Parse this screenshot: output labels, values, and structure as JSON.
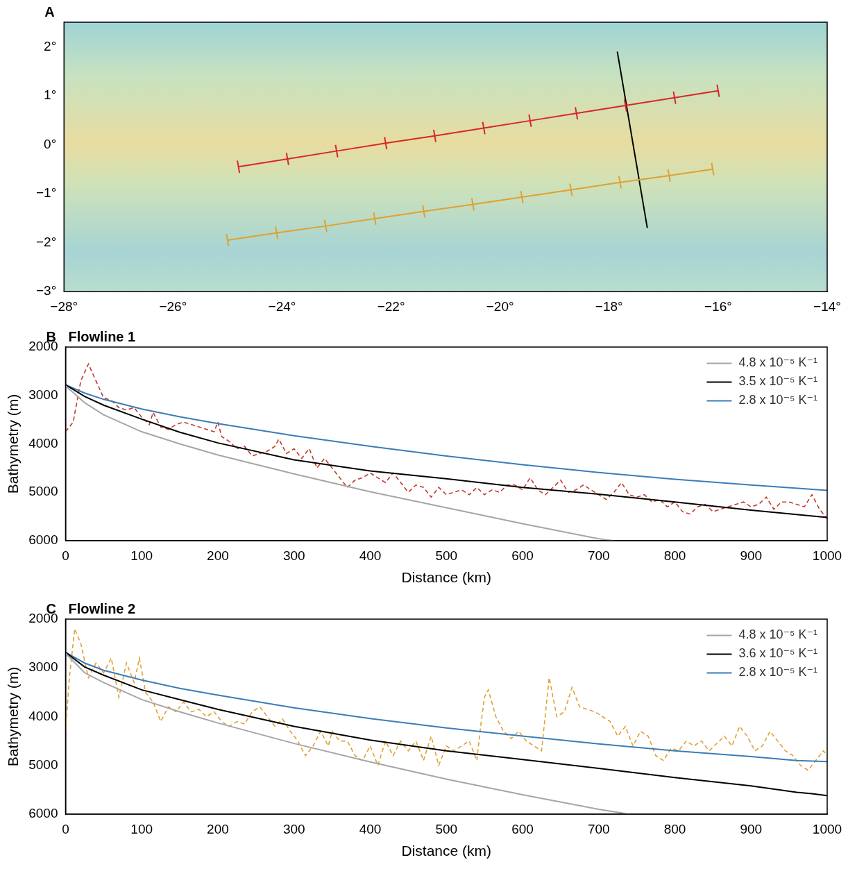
{
  "chart_data": [
    {
      "type": "scatter",
      "panel": "A",
      "xlim": [
        -28,
        -14
      ],
      "xticks": [
        {
          "value": -28,
          "label": "−28°"
        },
        {
          "value": -26,
          "label": "−26°"
        },
        {
          "value": -24,
          "label": "−24°"
        },
        {
          "value": -22,
          "label": "−22°"
        },
        {
          "value": -20,
          "label": "−20°"
        },
        {
          "value": -18,
          "label": "−18°"
        },
        {
          "value": -16,
          "label": "−16°"
        },
        {
          "value": -14,
          "label": "−14°"
        }
      ],
      "ylim": [
        -3,
        2.5
      ],
      "yticks": [
        {
          "value": -3,
          "label": "−3°"
        },
        {
          "value": -2,
          "label": "−2°"
        },
        {
          "value": -1,
          "label": "−1°"
        },
        {
          "value": 0,
          "label": "0°"
        },
        {
          "value": 1,
          "label": "1°"
        },
        {
          "value": 2,
          "label": "2°"
        }
      ],
      "grid": false,
      "series": [
        {
          "color": "#d7262b",
          "marker": "line",
          "line_style": "solid",
          "x": [
            -24.8,
            -23.9,
            -23.0,
            -22.1,
            -21.2,
            -20.3,
            -19.45,
            -18.6,
            -17.7,
            -16.8,
            -16.0
          ],
          "values": [
            -0.45,
            -0.29,
            -0.13,
            0.03,
            0.18,
            0.34,
            0.49,
            0.64,
            0.8,
            0.96,
            1.1
          ]
        },
        {
          "color": "#e0a030",
          "marker": "line",
          "line_style": "solid",
          "x": [
            -25.0,
            -24.1,
            -23.2,
            -22.3,
            -21.4,
            -20.5,
            -19.6,
            -18.7,
            -17.8,
            -16.9,
            -16.1
          ],
          "values": [
            -1.95,
            -1.8,
            -1.66,
            -1.51,
            -1.36,
            -1.22,
            -1.07,
            -0.92,
            -0.77,
            -0.63,
            -0.5
          ]
        },
        {
          "color": "#000000",
          "marker": "none",
          "line_style": "solid",
          "x": [
            -17.85,
            -17.3
          ],
          "values": [
            1.9,
            -1.7
          ]
        }
      ]
    },
    {
      "type": "line",
      "panel": "B",
      "title": "Flowline 1",
      "x_label": "Distance (km)",
      "y_label": "Bathymetry (m)",
      "xlim": [
        0,
        1000
      ],
      "xticks": [
        0,
        100,
        200,
        300,
        400,
        500,
        600,
        700,
        800,
        900,
        1000
      ],
      "ylim": [
        6000,
        2000
      ],
      "yticks": [
        2000,
        3000,
        4000,
        5000,
        6000
      ],
      "grid": false,
      "legend": "top-right",
      "series": [
        {
          "name": "4.8 x 10⁻⁵ K⁻¹",
          "color": "#a6a6a6",
          "line_style": "solid",
          "x": [
            0,
            25,
            50,
            100,
            150,
            200,
            300,
            400,
            500,
            600,
            700,
            720
          ],
          "values": [
            2800,
            3150,
            3400,
            3750,
            4000,
            4230,
            4620,
            4990,
            5320,
            5650,
            5960,
            6000
          ]
        },
        {
          "name": "3.5 x 10⁻⁵ K⁻¹",
          "color": "#000000",
          "line_style": "solid",
          "x": [
            0,
            25,
            50,
            100,
            150,
            200,
            300,
            400,
            500,
            600,
            700,
            800,
            900,
            1000
          ],
          "values": [
            2780,
            3020,
            3200,
            3490,
            3760,
            3980,
            4330,
            4560,
            4720,
            4900,
            5040,
            5200,
            5370,
            5520
          ]
        },
        {
          "name": "2.8 x 10⁻⁵ K⁻¹",
          "color": "#3a7db8",
          "line_style": "solid",
          "x": [
            0,
            25,
            50,
            100,
            150,
            200,
            300,
            400,
            500,
            600,
            700,
            800,
            900,
            1000
          ],
          "values": [
            2780,
            2950,
            3080,
            3280,
            3440,
            3580,
            3830,
            4050,
            4250,
            4430,
            4590,
            4730,
            4850,
            4960
          ]
        },
        {
          "color": "#c0392b",
          "line_style": "dashed",
          "x": [
            0,
            10,
            20,
            30,
            40,
            50,
            60,
            70,
            80,
            90,
            100,
            110,
            115,
            125,
            135,
            145,
            155,
            165,
            175,
            185,
            195,
            200,
            205,
            215,
            225,
            235,
            245,
            255,
            265,
            275,
            280,
            290,
            300,
            310,
            320,
            330,
            340,
            350,
            360,
            370,
            380,
            390,
            400,
            410,
            420,
            430,
            440,
            450,
            460,
            470,
            480,
            490,
            500,
            510,
            520,
            530,
            540,
            550,
            560,
            570,
            580,
            590,
            600,
            610,
            620,
            630,
            640,
            650,
            660,
            670,
            680,
            690,
            700,
            710,
            720,
            730,
            740,
            750,
            760,
            770,
            780,
            790,
            800,
            810,
            820,
            830,
            840,
            850,
            860,
            870,
            880,
            890,
            900,
            910,
            920,
            930,
            940,
            950,
            960,
            970,
            980,
            990,
            1000
          ],
          "values": [
            3750,
            3550,
            2700,
            2350,
            2700,
            3050,
            3100,
            3250,
            3300,
            3250,
            3450,
            3600,
            3350,
            3650,
            3700,
            3600,
            3550,
            3600,
            3650,
            3700,
            3750,
            3550,
            3850,
            3950,
            4100,
            4050,
            4250,
            4200,
            4150,
            4050,
            3900,
            4200,
            4100,
            4300,
            4100,
            4500,
            4300,
            4500,
            4700,
            4900,
            4750,
            4700,
            4600,
            4700,
            4800,
            4600,
            4800,
            5000,
            4850,
            4900,
            5100,
            4900,
            5050,
            5000,
            4950,
            5050,
            4900,
            5050,
            4950,
            5000,
            4850,
            4850,
            4950,
            4700,
            4950,
            5050,
            4900,
            4750,
            5000,
            4950,
            4850,
            4950,
            5050,
            5150,
            5000,
            4800,
            5050,
            5100,
            5050,
            5200,
            5150,
            5300,
            5200,
            5400,
            5450,
            5300,
            5250,
            5400,
            5350,
            5300,
            5250,
            5200,
            5300,
            5250,
            5100,
            5350,
            5200,
            5200,
            5250,
            5300,
            5050,
            5350,
            5550
          ]
        }
      ]
    },
    {
      "type": "line",
      "panel": "C",
      "title": "Flowline 2",
      "x_label": "Distance (km)",
      "y_label": "Bathymetry (m)",
      "xlim": [
        0,
        1000
      ],
      "xticks": [
        0,
        100,
        200,
        300,
        400,
        500,
        600,
        700,
        800,
        900,
        1000
      ],
      "ylim": [
        6000,
        2000
      ],
      "yticks": [
        2000,
        3000,
        4000,
        5000,
        6000
      ],
      "grid": false,
      "legend": "top-right",
      "series": [
        {
          "name": "4.8 x 10⁻⁵ K⁻¹",
          "color": "#a6a6a6",
          "line_style": "solid",
          "x": [
            0,
            25,
            50,
            100,
            150,
            200,
            300,
            400,
            500,
            600,
            700,
            740
          ],
          "values": [
            2700,
            3100,
            3300,
            3650,
            3900,
            4130,
            4550,
            4930,
            5280,
            5600,
            5900,
            6000
          ]
        },
        {
          "name": "3.6 x 10⁻⁵ K⁻¹",
          "color": "#000000",
          "line_style": "solid",
          "x": [
            0,
            25,
            50,
            100,
            150,
            200,
            300,
            400,
            500,
            600,
            700,
            800,
            900,
            960,
            980,
            1000
          ],
          "values": [
            2680,
            2980,
            3150,
            3450,
            3650,
            3850,
            4200,
            4480,
            4700,
            4880,
            5060,
            5250,
            5420,
            5550,
            5580,
            5620
          ]
        },
        {
          "name": "2.8 x 10⁻⁵ K⁻¹",
          "color": "#3a7db8",
          "line_style": "solid",
          "x": [
            0,
            25,
            50,
            100,
            150,
            200,
            300,
            400,
            500,
            600,
            700,
            800,
            900,
            960,
            1000
          ],
          "values": [
            2680,
            2900,
            3050,
            3250,
            3420,
            3560,
            3820,
            4040,
            4230,
            4400,
            4560,
            4700,
            4820,
            4900,
            4920
          ]
        },
        {
          "color": "#e0a030",
          "line_style": "dashed",
          "x": [
            0,
            5,
            12,
            20,
            30,
            40,
            50,
            60,
            70,
            80,
            90,
            97,
            105,
            115,
            125,
            135,
            145,
            155,
            165,
            175,
            185,
            195,
            205,
            215,
            225,
            235,
            245,
            255,
            265,
            275,
            285,
            295,
            305,
            315,
            325,
            335,
            345,
            350,
            360,
            370,
            380,
            390,
            400,
            410,
            420,
            430,
            440,
            450,
            460,
            470,
            480,
            490,
            500,
            510,
            520,
            530,
            540,
            545,
            550,
            555,
            565,
            575,
            585,
            595,
            605,
            615,
            625,
            635,
            645,
            655,
            665,
            675,
            685,
            695,
            705,
            715,
            725,
            735,
            745,
            755,
            765,
            775,
            785,
            795,
            805,
            815,
            825,
            835,
            845,
            855,
            865,
            875,
            885,
            895,
            905,
            915,
            925,
            935,
            945,
            955,
            965,
            975,
            985,
            995,
            1000
          ],
          "values": [
            4300,
            3200,
            2200,
            2500,
            3200,
            2900,
            3100,
            2800,
            3600,
            2900,
            3300,
            2800,
            3500,
            3700,
            4100,
            3800,
            3900,
            3700,
            3900,
            3850,
            4000,
            3900,
            4100,
            4200,
            4100,
            4150,
            3900,
            3800,
            4000,
            4200,
            4050,
            4300,
            4500,
            4800,
            4600,
            4300,
            4600,
            4300,
            4500,
            4500,
            4800,
            4900,
            4600,
            5000,
            4500,
            4800,
            4500,
            4700,
            4500,
            4900,
            4400,
            5000,
            4600,
            4700,
            4600,
            4500,
            4900,
            4200,
            3600,
            3450,
            4000,
            4300,
            4450,
            4300,
            4500,
            4600,
            4700,
            3200,
            4000,
            3900,
            3400,
            3800,
            3850,
            3900,
            4000,
            4100,
            4400,
            4200,
            4600,
            4300,
            4400,
            4800,
            4900,
            4650,
            4700,
            4500,
            4600,
            4500,
            4700,
            4550,
            4400,
            4600,
            4200,
            4400,
            4700,
            4600,
            4300,
            4500,
            4700,
            4800,
            5000,
            5100,
            4900,
            4700,
            4800
          ]
        }
      ]
    }
  ]
}
